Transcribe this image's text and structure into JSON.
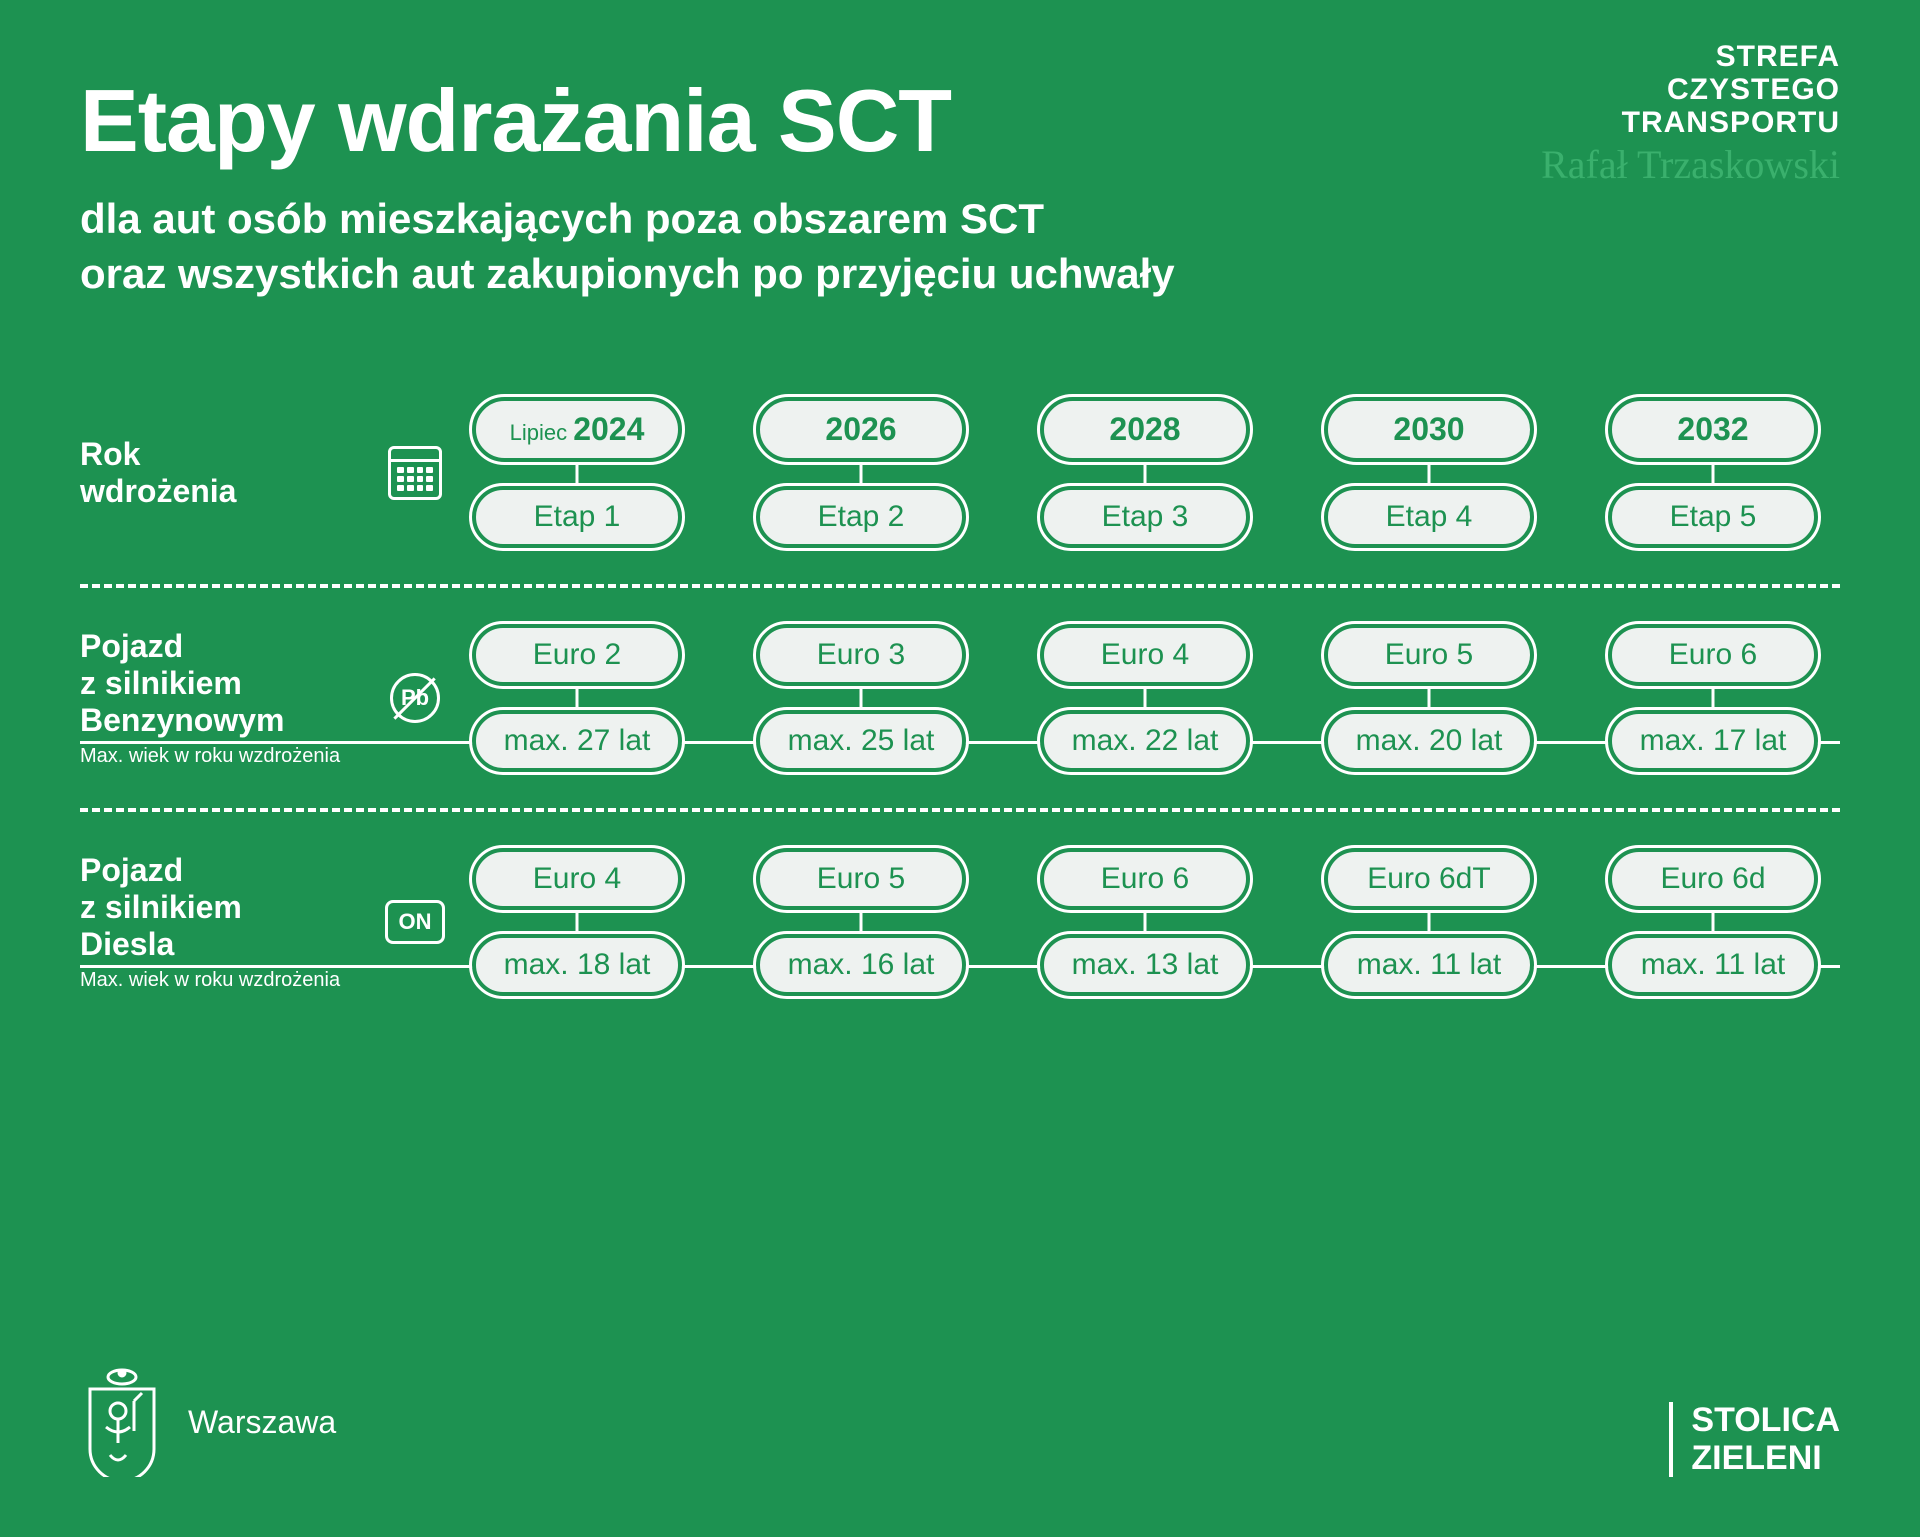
{
  "colors": {
    "background": "#1d9251",
    "pill_bg": "#eef2f0",
    "pill_text": "#1d9251",
    "text": "#ffffff",
    "signature": "#3ab06d"
  },
  "header": {
    "logo_line1": "STREFA",
    "logo_line2": "CZYSTEGO",
    "logo_line3": "TRANSPORTU",
    "signature": "Rafał Trzaskowski",
    "title": "Etapy wdrażania SCT",
    "subtitle_line1": "dla aut osób mieszkających poza obszarem SCT",
    "subtitle_line2": "oraz wszystkich aut zakupionych po przyjęciu uchwały"
  },
  "rows": [
    {
      "label": "Rok\nwdrożenia",
      "sublabel": "",
      "icon": "calendar",
      "connect_bottom": false,
      "stages": [
        {
          "top_prefix": "Lipiec ",
          "top": "2024",
          "bottom": "Etap 1"
        },
        {
          "top_prefix": "",
          "top": "2026",
          "bottom": "Etap 2"
        },
        {
          "top_prefix": "",
          "top": "2028",
          "bottom": "Etap 3"
        },
        {
          "top_prefix": "",
          "top": "2030",
          "bottom": "Etap 4"
        },
        {
          "top_prefix": "",
          "top": "2032",
          "bottom": "Etap 5"
        }
      ]
    },
    {
      "label": "Pojazd\nz silnikiem\nBenzynowym",
      "sublabel": "Max. wiek w roku wzdrożenia",
      "icon": "pb",
      "connect_bottom": true,
      "stages": [
        {
          "top": "Euro 2",
          "bottom": "max. 27 lat"
        },
        {
          "top": "Euro 3",
          "bottom": "max. 25 lat"
        },
        {
          "top": "Euro 4",
          "bottom": "max. 22 lat"
        },
        {
          "top": "Euro 5",
          "bottom": "max. 20 lat"
        },
        {
          "top": "Euro 6",
          "bottom": "max. 17 lat"
        }
      ]
    },
    {
      "label": "Pojazd\nz silnikiem\nDiesla",
      "sublabel": "Max. wiek w roku wzdrożenia",
      "icon": "on",
      "connect_bottom": true,
      "stages": [
        {
          "top": "Euro 4",
          "bottom": "max. 18 lat"
        },
        {
          "top": "Euro 5",
          "bottom": "max. 16 lat"
        },
        {
          "top": "Euro 6",
          "bottom": "max. 13 lat"
        },
        {
          "top": "Euro 6dT",
          "bottom": "max. 11 lat"
        },
        {
          "top": "Euro 6d",
          "bottom": "max. 11 lat"
        }
      ]
    }
  ],
  "footer": {
    "city": "Warszawa",
    "right_line1": "STOLICA",
    "right_line2": "ZIELENI"
  },
  "icon_labels": {
    "pb": "Pb",
    "on": "ON"
  }
}
